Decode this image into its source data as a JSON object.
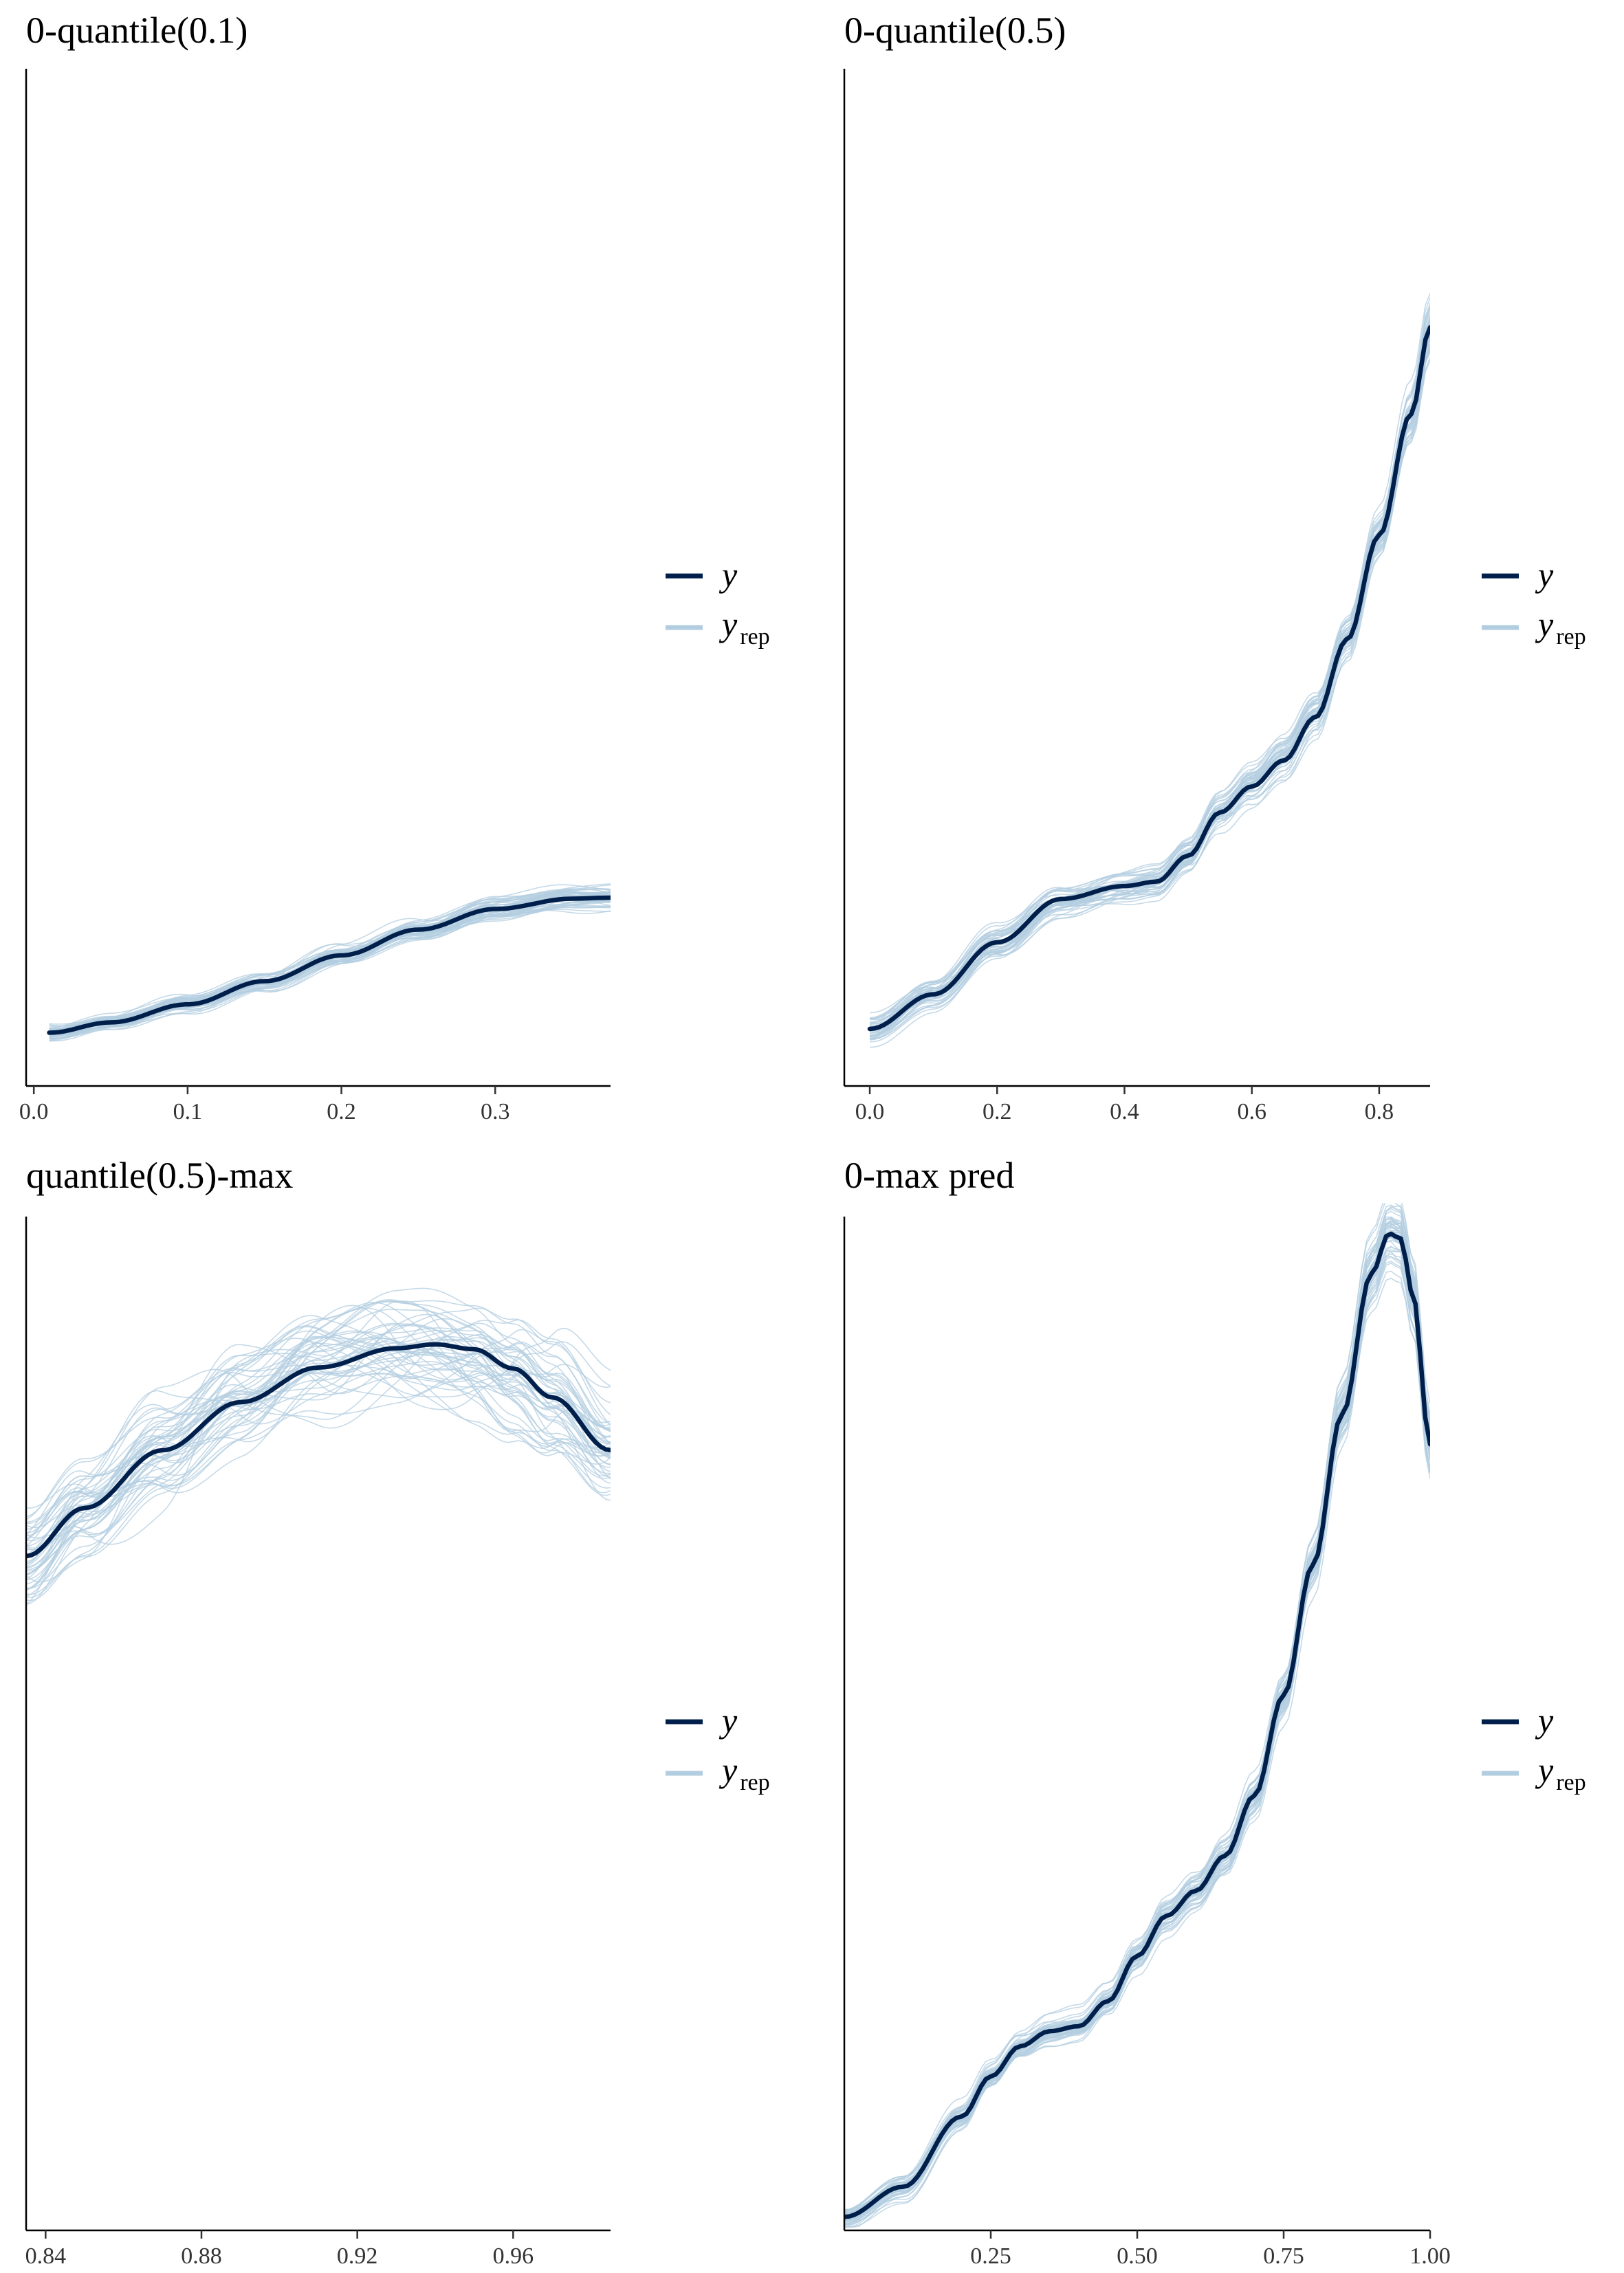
{
  "legend": {
    "observed": "y",
    "replicated_base": "y",
    "replicated_sub": "rep"
  },
  "colors": {
    "observed": "#011f4b",
    "replicated": "#b3cde0"
  },
  "chart_data": [
    {
      "type": "line",
      "title": "0-quantile(0.1)",
      "xlim": [
        -0.005,
        0.375
      ],
      "ylim": [
        0,
        1
      ],
      "x_ticks": [
        0.0,
        0.1,
        0.2,
        0.3
      ],
      "x_tick_labels": [
        "0.0",
        "0.1",
        "0.2",
        "0.3"
      ],
      "observed": {
        "x": [
          0.01,
          0.05,
          0.1,
          0.15,
          0.2,
          0.25,
          0.3,
          0.35,
          0.375
        ],
        "y": [
          0.05,
          0.07,
          0.105,
          0.15,
          0.2,
          0.25,
          0.29,
          0.31,
          0.312
        ]
      },
      "replicate_count": 50,
      "replicate_spread": 0.045
    },
    {
      "type": "line",
      "title": "0-quantile(0.5)",
      "xlim": [
        -0.04,
        0.88
      ],
      "ylim": [
        0,
        1
      ],
      "x_ticks": [
        0.0,
        0.2,
        0.4,
        0.6,
        0.8
      ],
      "x_tick_labels": [
        "0.0",
        "0.2",
        "0.4",
        "0.6",
        "0.8"
      ],
      "observed": {
        "x": [
          0.0,
          0.1,
          0.2,
          0.3,
          0.4,
          0.45,
          0.5,
          0.55,
          0.6,
          0.65,
          0.7,
          0.75,
          0.8,
          0.85,
          0.88
        ],
        "y": [
          0.05,
          0.09,
          0.15,
          0.2,
          0.215,
          0.22,
          0.25,
          0.3,
          0.33,
          0.36,
          0.41,
          0.5,
          0.62,
          0.76,
          0.86
        ]
      },
      "replicate_count": 50,
      "replicate_spread": 0.04
    },
    {
      "type": "line",
      "title": "quantile(0.5)-max",
      "xlim": [
        0.835,
        0.985
      ],
      "ylim": [
        0,
        1
      ],
      "x_ticks": [
        0.84,
        0.88,
        0.92,
        0.96
      ],
      "x_tick_labels": [
        "0.84",
        "0.88",
        "0.92",
        "0.96"
      ],
      "observed": {
        "x": [
          0.835,
          0.85,
          0.87,
          0.89,
          0.91,
          0.93,
          0.94,
          0.95,
          0.96,
          0.97,
          0.985
        ],
        "y": [
          0.69,
          0.74,
          0.8,
          0.85,
          0.886,
          0.906,
          0.91,
          0.905,
          0.885,
          0.855,
          0.8
        ]
      },
      "replicate_count": 50,
      "replicate_spread": 0.06
    },
    {
      "type": "line",
      "title": "0-max pred",
      "xlim": [
        0.0,
        1.0
      ],
      "ylim": [
        0,
        1
      ],
      "x_ticks": [
        0.25,
        0.5,
        0.75,
        1.0
      ],
      "x_tick_labels": [
        "0.25",
        "0.50",
        "0.75",
        "1.00"
      ],
      "observed": {
        "x": [
          0.0,
          0.1,
          0.2,
          0.25,
          0.3,
          0.35,
          0.4,
          0.45,
          0.5,
          0.55,
          0.6,
          0.65,
          0.7,
          0.75,
          0.8,
          0.85,
          0.9,
          0.93,
          0.95,
          0.97,
          1.0
        ],
        "y": [
          0.01,
          0.04,
          0.11,
          0.15,
          0.18,
          0.195,
          0.2,
          0.225,
          0.27,
          0.31,
          0.335,
          0.37,
          0.43,
          0.53,
          0.66,
          0.81,
          0.95,
          0.99,
          0.985,
          0.93,
          0.78
        ]
      },
      "replicate_count": 50,
      "replicate_spread": 0.035
    }
  ]
}
